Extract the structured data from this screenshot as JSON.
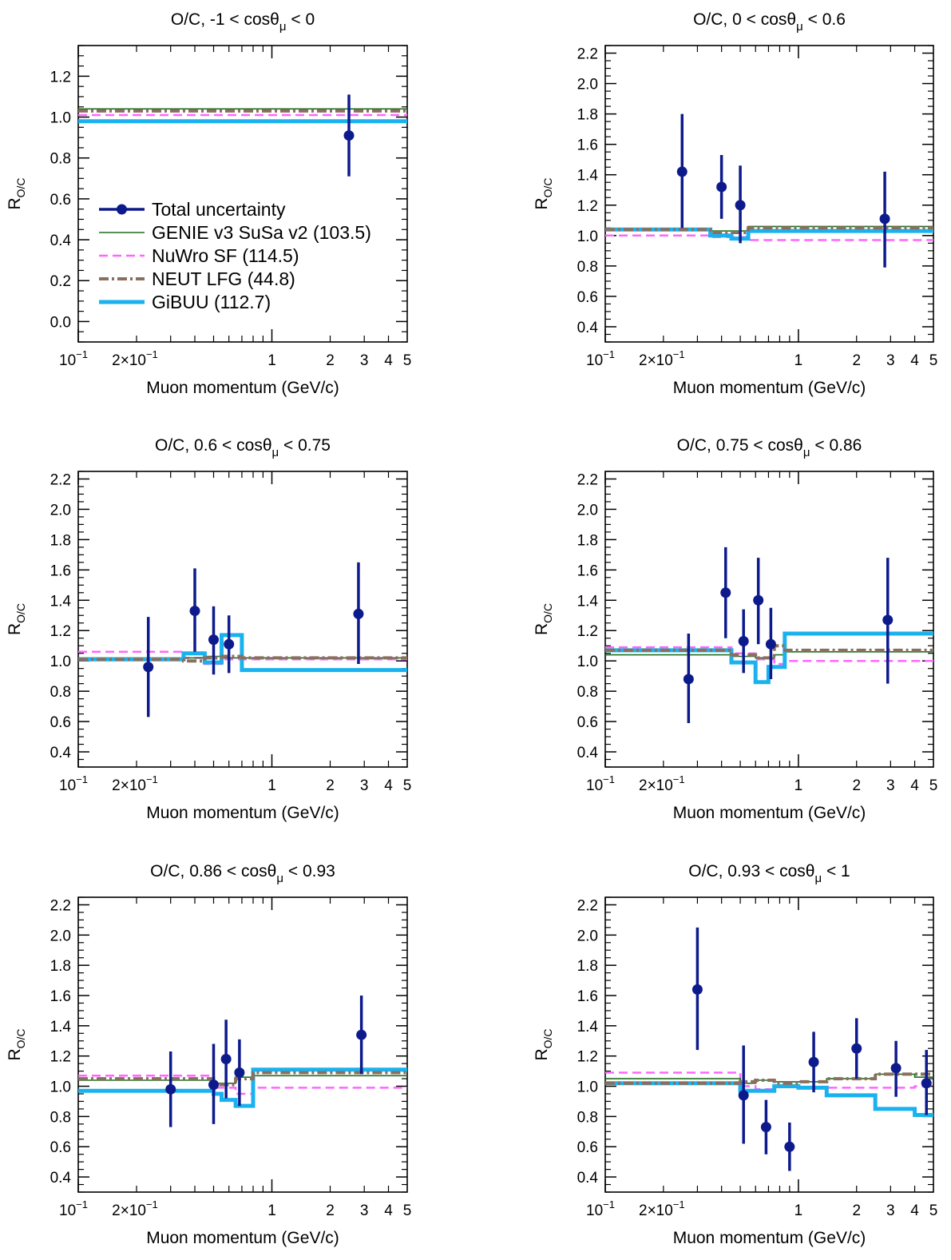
{
  "figure": {
    "xlabel": "Muon momentum (GeV/c)",
    "ylabel_main": "R",
    "ylabel_sub": "O/C",
    "title_prefix": "O/C, ",
    "cos_symbol": "cosθ",
    "mu_symbol": "μ"
  },
  "legend": [
    {
      "label": "Total uncertainty",
      "color": "#0d1a8c",
      "style": "marker"
    },
    {
      "label": "GENIE v3 SuSa v2 (103.5)",
      "color": "#1f6e1f",
      "style": "solid-thin"
    },
    {
      "label": "NuWro SF (114.5)",
      "color": "#ff66ff",
      "style": "dashed"
    },
    {
      "label": "NEUT LFG (44.8)",
      "color": "#8b6f5e",
      "style": "dashdot"
    },
    {
      "label": "GiBUU (112.7)",
      "color": "#1ab2ee",
      "style": "solid-thick"
    }
  ],
  "x_ticks": [
    {
      "v": 0.1,
      "base": "10",
      "sup": "−1"
    },
    {
      "v": 0.2,
      "base": "2×10",
      "sup": "−1"
    },
    {
      "v": 1,
      "base": "1",
      "sup": ""
    },
    {
      "v": 2,
      "base": "2",
      "sup": ""
    },
    {
      "v": 3,
      "base": "3",
      "sup": ""
    },
    {
      "v": 4,
      "base": "4",
      "sup": ""
    },
    {
      "v": 5,
      "base": "5",
      "sup": ""
    }
  ],
  "chart_data": [
    {
      "type": "line",
      "title_range_low": "-1",
      "title_range_high": "0",
      "xscale": "log",
      "xlim": [
        0.1,
        5
      ],
      "ylim": [
        -0.1,
        1.35
      ],
      "yticks": [
        "0.0",
        "0.2",
        "0.4",
        "0.6",
        "0.8",
        "1.0",
        "1.2"
      ],
      "data": [
        {
          "x": 2.5,
          "y": 0.91,
          "ylow": 0.71,
          "yhigh": 1.11
        }
      ],
      "models": {
        "genie": {
          "edges": [
            0.1,
            5
          ],
          "values": [
            1.04
          ]
        },
        "nuwro": {
          "edges": [
            0.1,
            5
          ],
          "values": [
            1.01
          ]
        },
        "neut": {
          "edges": [
            0.1,
            5
          ],
          "values": [
            1.03
          ]
        },
        "gibuu": {
          "edges": [
            0.1,
            5
          ],
          "values": [
            0.98
          ]
        }
      },
      "legend_placement": "lower-left"
    },
    {
      "type": "line",
      "title_range_low": "0",
      "title_range_high": "0.6",
      "xscale": "log",
      "xlim": [
        0.1,
        5
      ],
      "ylim": [
        0.3,
        2.25
      ],
      "yticks": [
        "0.4",
        "0.6",
        "0.8",
        "1.0",
        "1.2",
        "1.4",
        "1.6",
        "1.8",
        "2.0",
        "2.2"
      ],
      "data": [
        {
          "x": 0.25,
          "y": 1.42,
          "ylow": 1.05,
          "yhigh": 1.8
        },
        {
          "x": 0.4,
          "y": 1.32,
          "ylow": 1.11,
          "yhigh": 1.53
        },
        {
          "x": 0.5,
          "y": 1.2,
          "ylow": 0.95,
          "yhigh": 1.46
        },
        {
          "x": 2.8,
          "y": 1.11,
          "ylow": 0.79,
          "yhigh": 1.42
        }
      ],
      "models": {
        "genie": {
          "edges": [
            0.1,
            0.35,
            0.55,
            5
          ],
          "values": [
            1.04,
            1.03,
            1.06
          ]
        },
        "nuwro": {
          "edges": [
            0.1,
            0.35,
            0.55,
            5
          ],
          "values": [
            1.0,
            0.99,
            0.97
          ]
        },
        "neut": {
          "edges": [
            0.1,
            0.35,
            0.55,
            5
          ],
          "values": [
            1.04,
            1.02,
            1.05
          ]
        },
        "gibuu": {
          "edges": [
            0.1,
            0.35,
            0.45,
            0.55,
            5
          ],
          "values": [
            1.04,
            1.0,
            0.98,
            1.03
          ]
        }
      }
    },
    {
      "type": "line",
      "title_range_low": "0.6",
      "title_range_high": "0.75",
      "xscale": "log",
      "xlim": [
        0.1,
        5
      ],
      "ylim": [
        0.3,
        2.25
      ],
      "yticks": [
        "0.4",
        "0.6",
        "0.8",
        "1.0",
        "1.2",
        "1.4",
        "1.6",
        "1.8",
        "2.0",
        "2.2"
      ],
      "data": [
        {
          "x": 0.23,
          "y": 0.96,
          "ylow": 0.63,
          "yhigh": 1.29
        },
        {
          "x": 0.4,
          "y": 1.33,
          "ylow": 1.06,
          "yhigh": 1.61
        },
        {
          "x": 0.5,
          "y": 1.14,
          "ylow": 0.91,
          "yhigh": 1.36
        },
        {
          "x": 0.6,
          "y": 1.11,
          "ylow": 0.92,
          "yhigh": 1.3
        },
        {
          "x": 2.8,
          "y": 1.31,
          "ylow": 0.98,
          "yhigh": 1.65
        }
      ],
      "models": {
        "genie": {
          "edges": [
            0.1,
            0.45,
            0.55,
            5
          ],
          "values": [
            1.02,
            1.03,
            1.02
          ]
        },
        "nuwro": {
          "edges": [
            0.1,
            0.35,
            0.45,
            0.55,
            5
          ],
          "values": [
            1.06,
            1.02,
            0.98,
            1.01
          ]
        },
        "neut": {
          "edges": [
            0.1,
            0.35,
            0.45,
            0.55,
            0.7,
            5
          ],
          "values": [
            1.01,
            1.0,
            1.02,
            1.03,
            1.02
          ]
        },
        "gibuu": {
          "edges": [
            0.1,
            0.35,
            0.45,
            0.55,
            0.7,
            5
          ],
          "values": [
            1.01,
            1.05,
            0.99,
            1.17,
            0.94
          ]
        }
      }
    },
    {
      "type": "line",
      "title_range_low": "0.75",
      "title_range_high": "0.86",
      "xscale": "log",
      "xlim": [
        0.1,
        5
      ],
      "ylim": [
        0.3,
        2.25
      ],
      "yticks": [
        "0.4",
        "0.6",
        "0.8",
        "1.0",
        "1.2",
        "1.4",
        "1.6",
        "1.8",
        "2.0",
        "2.2"
      ],
      "data": [
        {
          "x": 0.27,
          "y": 0.88,
          "ylow": 0.59,
          "yhigh": 1.18
        },
        {
          "x": 0.42,
          "y": 1.45,
          "ylow": 1.15,
          "yhigh": 1.75
        },
        {
          "x": 0.52,
          "y": 1.13,
          "ylow": 0.92,
          "yhigh": 1.34
        },
        {
          "x": 0.62,
          "y": 1.4,
          "ylow": 1.11,
          "yhigh": 1.68
        },
        {
          "x": 0.72,
          "y": 1.11,
          "ylow": 0.88,
          "yhigh": 1.35
        },
        {
          "x": 2.9,
          "y": 1.27,
          "ylow": 0.85,
          "yhigh": 1.68
        }
      ],
      "models": {
        "genie": {
          "edges": [
            0.1,
            0.45,
            0.6,
            0.75,
            0.85,
            5
          ],
          "values": [
            1.04,
            1.03,
            1.02,
            1.04,
            1.06
          ]
        },
        "nuwro": {
          "edges": [
            0.1,
            0.45,
            0.6,
            0.75,
            0.85,
            5
          ],
          "values": [
            1.09,
            1.05,
            1.01,
            0.98,
            1.0
          ]
        },
        "neut": {
          "edges": [
            0.1,
            0.45,
            0.6,
            0.75,
            0.85,
            5
          ],
          "values": [
            1.07,
            1.04,
            1.02,
            1.1,
            1.07
          ]
        },
        "gibuu": {
          "edges": [
            0.1,
            0.45,
            0.6,
            0.7,
            0.85,
            5
          ],
          "values": [
            1.07,
            0.99,
            0.86,
            0.96,
            1.18
          ]
        }
      }
    },
    {
      "type": "line",
      "title_range_low": "0.86",
      "title_range_high": "0.93",
      "xscale": "log",
      "xlim": [
        0.1,
        5
      ],
      "ylim": [
        0.3,
        2.25
      ],
      "yticks": [
        "0.4",
        "0.6",
        "0.8",
        "1.0",
        "1.2",
        "1.4",
        "1.6",
        "1.8",
        "2.0",
        "2.2"
      ],
      "data": [
        {
          "x": 0.3,
          "y": 0.98,
          "ylow": 0.73,
          "yhigh": 1.23
        },
        {
          "x": 0.5,
          "y": 1.01,
          "ylow": 0.75,
          "yhigh": 1.28
        },
        {
          "x": 0.58,
          "y": 1.18,
          "ylow": 0.92,
          "yhigh": 1.44
        },
        {
          "x": 0.68,
          "y": 1.09,
          "ylow": 0.87,
          "yhigh": 1.31
        },
        {
          "x": 2.9,
          "y": 1.34,
          "ylow": 1.08,
          "yhigh": 1.6
        }
      ],
      "models": {
        "genie": {
          "edges": [
            0.1,
            0.5,
            0.65,
            0.8,
            5
          ],
          "values": [
            1.04,
            1.02,
            1.06,
            1.07
          ]
        },
        "nuwro": {
          "edges": [
            0.1,
            0.5,
            0.65,
            0.8,
            5
          ],
          "values": [
            1.07,
            0.99,
            0.95,
            0.99
          ]
        },
        "neut": {
          "edges": [
            0.1,
            0.5,
            0.65,
            0.8,
            5
          ],
          "values": [
            1.05,
            1.01,
            1.05,
            1.09
          ]
        },
        "gibuu": {
          "edges": [
            0.1,
            0.5,
            0.55,
            0.65,
            0.8,
            5
          ],
          "values": [
            0.97,
            0.95,
            0.91,
            0.87,
            1.11
          ]
        }
      }
    },
    {
      "type": "line",
      "title_range_low": "0.93",
      "title_range_high": "1",
      "xscale": "log",
      "xlim": [
        0.1,
        5
      ],
      "ylim": [
        0.3,
        2.25
      ],
      "yticks": [
        "0.4",
        "0.6",
        "0.8",
        "1.0",
        "1.2",
        "1.4",
        "1.6",
        "1.8",
        "2.0",
        "2.2"
      ],
      "data": [
        {
          "x": 0.3,
          "y": 1.64,
          "ylow": 1.24,
          "yhigh": 2.05
        },
        {
          "x": 0.52,
          "y": 0.94,
          "ylow": 0.62,
          "yhigh": 1.27
        },
        {
          "x": 0.68,
          "y": 0.73,
          "ylow": 0.55,
          "yhigh": 0.91
        },
        {
          "x": 0.9,
          "y": 0.6,
          "ylow": 0.44,
          "yhigh": 0.76
        },
        {
          "x": 1.2,
          "y": 1.16,
          "ylow": 0.96,
          "yhigh": 1.36
        },
        {
          "x": 2.0,
          "y": 1.25,
          "ylow": 1.05,
          "yhigh": 1.45
        },
        {
          "x": 3.2,
          "y": 1.12,
          "ylow": 0.93,
          "yhigh": 1.3
        },
        {
          "x": 4.6,
          "y": 1.02,
          "ylow": 0.81,
          "yhigh": 1.24
        }
      ],
      "models": {
        "genie": {
          "edges": [
            0.1,
            0.5,
            0.6,
            0.75,
            1.0,
            1.4,
            2.5,
            4.0,
            5
          ],
          "values": [
            1.05,
            1.02,
            1.04,
            1.03,
            1.03,
            1.05,
            1.08,
            1.06
          ]
        },
        "nuwro": {
          "edges": [
            0.1,
            0.5,
            0.6,
            0.75,
            1.0,
            1.4,
            2.5,
            4.0,
            5
          ],
          "values": [
            1.09,
            1.0,
            0.98,
            1.0,
            0.99,
            0.99,
            0.99,
            1.0
          ]
        },
        "neut": {
          "edges": [
            0.1,
            0.5,
            0.6,
            0.75,
            1.0,
            1.4,
            2.5,
            4.0,
            5
          ],
          "values": [
            1.02,
            1.03,
            1.04,
            1.02,
            1.03,
            1.05,
            1.08,
            1.08
          ]
        },
        "gibuu": {
          "edges": [
            0.1,
            0.5,
            0.6,
            0.75,
            1.0,
            1.4,
            2.5,
            4.0,
            5
          ],
          "values": [
            1.02,
            0.97,
            0.97,
            1.0,
            0.99,
            0.94,
            0.85,
            0.81
          ]
        }
      }
    }
  ]
}
